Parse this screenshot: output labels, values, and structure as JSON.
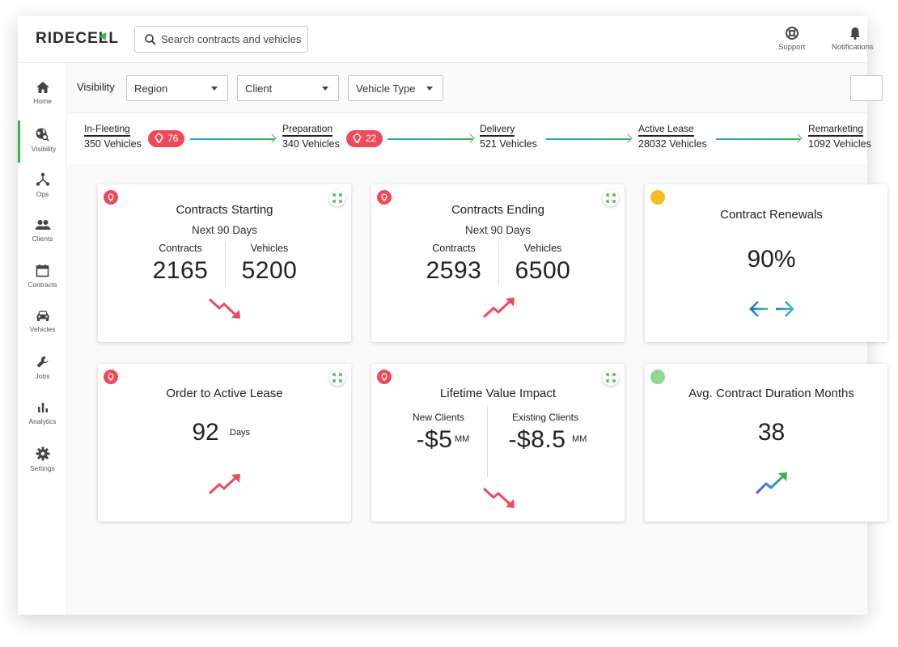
{
  "app": {
    "logo": "RIDECELL"
  },
  "search": {
    "placeholder": "Search contracts and vehicles"
  },
  "header_actions": [
    {
      "label": "Support",
      "icon": "lifebuoy-icon"
    },
    {
      "label": "Notifications",
      "icon": "bell-icon"
    }
  ],
  "sidebar": {
    "items": [
      {
        "label": "Home",
        "icon": "home-icon"
      },
      {
        "label": "Visibility",
        "icon": "globe-search-icon",
        "active": true
      },
      {
        "label": "Ops",
        "icon": "network-icon"
      },
      {
        "label": "Clients",
        "icon": "people-icon"
      },
      {
        "label": "Contracts",
        "icon": "calendar-icon"
      },
      {
        "label": "Vehicles",
        "icon": "car-icon"
      },
      {
        "label": "Jobs",
        "icon": "wrench-icon"
      },
      {
        "label": "Analytics",
        "icon": "bar-chart-icon"
      },
      {
        "label": "Settings",
        "icon": "gear-icon"
      }
    ]
  },
  "filters": {
    "label": "Visibility",
    "dropdowns": [
      {
        "value": "Region"
      },
      {
        "value": "Client"
      },
      {
        "value": "Vehicle Type"
      }
    ]
  },
  "pipeline": {
    "stages": [
      {
        "name": "In-Fleeting",
        "count": "350 Vehicles",
        "badge": "76"
      },
      {
        "name": "Preparation",
        "count": "340 Vehicles",
        "badge": "22"
      },
      {
        "name": "Delivery",
        "count": "521 Vehicles"
      },
      {
        "name": "Active Lease",
        "count": "28032 Vehicles"
      },
      {
        "name": "Remarketing",
        "count": "1092 Vehicles"
      }
    ]
  },
  "colors": {
    "alert": "#ee4a5c",
    "warning": "#f5bd1f",
    "ok": "#8fd88f",
    "accent_green": "#3cb44b",
    "accent_blue": "#2aa8d8"
  },
  "cards": {
    "contracts_starting": {
      "title": "Contracts Starting",
      "subtitle": "Next 90 Days",
      "left_label": "Contracts",
      "left_value": "2165",
      "right_label": "Vehicles",
      "right_value": "5200",
      "trend": "down",
      "status": "alert"
    },
    "contracts_ending": {
      "title": "Contracts Ending",
      "subtitle": "Next 90 Days",
      "left_label": "Contracts",
      "left_value": "2593",
      "right_label": "Vehicles",
      "right_value": "6500",
      "trend": "up",
      "status": "alert"
    },
    "contract_renewals": {
      "title": "Contract Renewals",
      "value": "90%",
      "trend": "flat",
      "status": "warning"
    },
    "order_to_active": {
      "title": "Order to Active Lease",
      "value": "92",
      "unit": "Days",
      "trend": "up",
      "status": "alert"
    },
    "lifetime_value": {
      "title": "Lifetime Value Impact",
      "left_label": "New Clients",
      "left_value": "-$5",
      "left_unit": "MM",
      "right_label": "Existing Clients",
      "right_value": "-$8.5",
      "right_unit": "MM",
      "trend": "down",
      "status": "alert"
    },
    "avg_duration": {
      "title": "Avg. Contract Duration Months",
      "value": "38",
      "trend": "up",
      "status": "ok"
    }
  }
}
